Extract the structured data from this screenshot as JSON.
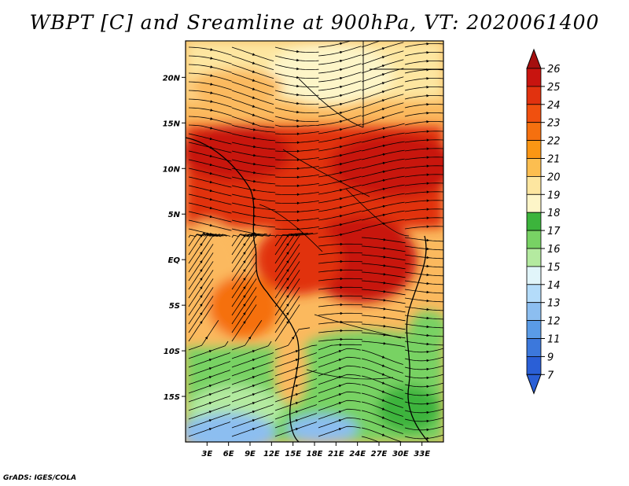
{
  "title": "WBPT [C] and Sreamline at 900hPa, VT: 2020061400",
  "credit": "GrADS: IGES/COLA",
  "map": {
    "lon_range": [
      0,
      36
    ],
    "lat_range": [
      -20,
      24
    ],
    "x_ticks": [
      "3E",
      "6E",
      "9E",
      "12E",
      "15E",
      "18E",
      "21E",
      "24E",
      "27E",
      "30E",
      "33E"
    ],
    "x_tick_values": [
      3,
      6,
      9,
      12,
      15,
      18,
      21,
      24,
      27,
      30,
      33
    ],
    "y_ticks": [
      "20N",
      "15N",
      "10N",
      "5N",
      "EQ",
      "5S",
      "10S",
      "15S"
    ],
    "y_tick_values": [
      20,
      15,
      10,
      5,
      0,
      -5,
      -10,
      -15
    ]
  },
  "colorbar": {
    "labels": [
      "26",
      "25",
      "24",
      "23",
      "22",
      "21",
      "20",
      "19",
      "18",
      "17",
      "16",
      "15",
      "14",
      "13",
      "12",
      "11",
      "9",
      "7"
    ],
    "colors": [
      "#a50f0f",
      "#c8140f",
      "#e1320f",
      "#f0500f",
      "#f5700f",
      "#fa9614",
      "#fcbe50",
      "#fde6a0",
      "#fdf5c8",
      "#3cb43c",
      "#78d264",
      "#b4eaa0",
      "#e1f5fa",
      "#b4dcfa",
      "#8cbef0",
      "#5a9be6",
      "#3c78dc",
      "#2a5fd6"
    ]
  },
  "colors": {
    "ocean": "#fbb95e",
    "streamline": "#000000"
  }
}
